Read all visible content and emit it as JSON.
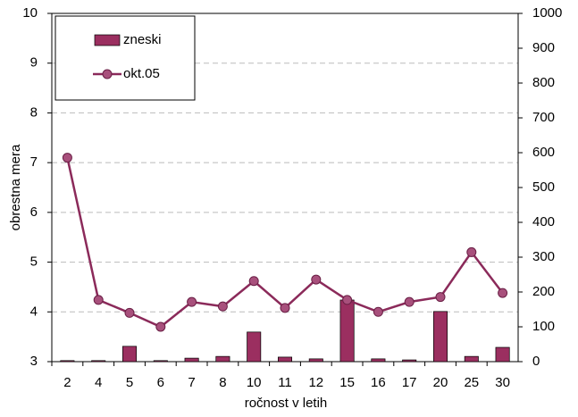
{
  "chart_data": {
    "type": "bar_line",
    "xlabel": "ročnost v letih",
    "ylabel": "obrestna mera",
    "categories": [
      "2",
      "4",
      "5",
      "6",
      "7",
      "8",
      "10",
      "11",
      "12",
      "15",
      "16",
      "17",
      "20",
      "25",
      "30"
    ],
    "series": [
      {
        "name": "zneski",
        "type": "bar",
        "axis": "y2",
        "color": "#9b2f60",
        "values": [
          3,
          3,
          44,
          3,
          10,
          15,
          85,
          13,
          8,
          177,
          8,
          5,
          144,
          15,
          41
        ]
      },
      {
        "name": "okt.05",
        "type": "line",
        "axis": "y",
        "color": "#8b2a5a",
        "values": [
          7.1,
          4.24,
          3.98,
          3.7,
          4.2,
          4.11,
          4.62,
          4.08,
          4.65,
          4.24,
          4.0,
          4.2,
          4.3,
          5.2,
          4.38
        ]
      }
    ],
    "ylim": [
      3,
      10
    ],
    "yticks": [
      3,
      4,
      5,
      6,
      7,
      8,
      9,
      10
    ],
    "y2lim": [
      0,
      1000
    ],
    "y2ticks": [
      0,
      100,
      200,
      300,
      400,
      500,
      600,
      700,
      800,
      900,
      1000
    ],
    "grid": true,
    "legend": "upper left"
  }
}
